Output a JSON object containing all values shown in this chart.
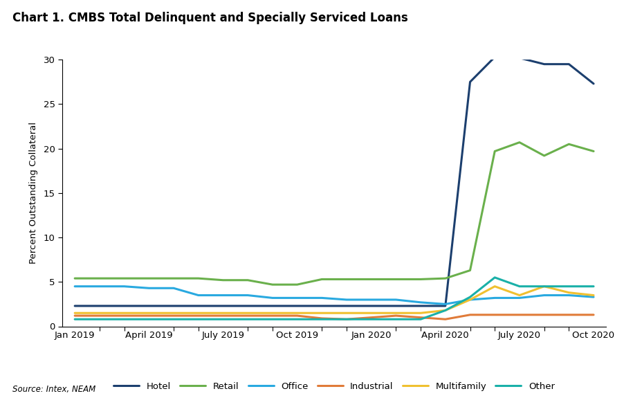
{
  "title": "Chart 1. CMBS Total Delinquent and Specially Serviced Loans",
  "ylabel": "Percent Outstanding Collateral",
  "source": "Source: Intex, NEAM",
  "ylim": [
    0,
    30
  ],
  "yticks": [
    0,
    5,
    10,
    15,
    20,
    25,
    30
  ],
  "x_labels": [
    "Jan 2019",
    "April 2019",
    "July 2019",
    "Oct 2019",
    "Jan 2020",
    "April 2020",
    "July 2020",
    "Oct 2020"
  ],
  "x_positions": [
    0,
    3,
    6,
    9,
    12,
    15,
    18,
    21
  ],
  "n_points": 22,
  "series": {
    "Hotel": {
      "color": "#1c3f6e",
      "data_y": [
        2.3,
        2.3,
        2.3,
        2.3,
        2.3,
        2.3,
        2.3,
        2.3,
        2.3,
        2.3,
        2.3,
        2.3,
        2.3,
        2.3,
        2.3,
        2.3,
        27.5,
        30.3,
        30.2,
        29.5,
        29.5,
        27.3
      ]
    },
    "Retail": {
      "color": "#6ab04c",
      "data_y": [
        5.4,
        5.4,
        5.4,
        5.4,
        5.4,
        5.4,
        5.2,
        5.2,
        4.7,
        4.7,
        5.3,
        5.3,
        5.3,
        5.3,
        5.3,
        5.4,
        6.3,
        19.7,
        20.7,
        19.2,
        20.5,
        19.7
      ]
    },
    "Office": {
      "color": "#29a9e0",
      "data_y": [
        4.5,
        4.5,
        4.5,
        4.3,
        4.3,
        3.5,
        3.5,
        3.5,
        3.2,
        3.2,
        3.2,
        3.0,
        3.0,
        3.0,
        2.7,
        2.5,
        3.0,
        3.2,
        3.2,
        3.5,
        3.5,
        3.3
      ]
    },
    "Industrial": {
      "color": "#e07b39",
      "data_y": [
        1.2,
        1.2,
        1.2,
        1.2,
        1.2,
        1.2,
        1.2,
        1.2,
        1.2,
        1.2,
        0.9,
        0.8,
        1.0,
        1.2,
        1.0,
        0.8,
        1.3,
        1.3,
        1.3,
        1.3,
        1.3,
        1.3
      ]
    },
    "Multifamily": {
      "color": "#f0c030",
      "data_y": [
        1.5,
        1.5,
        1.5,
        1.5,
        1.5,
        1.5,
        1.5,
        1.5,
        1.5,
        1.5,
        1.5,
        1.5,
        1.5,
        1.5,
        1.5,
        1.8,
        3.0,
        4.5,
        3.5,
        4.5,
        3.8,
        3.5
      ]
    },
    "Other": {
      "color": "#1ab0a8",
      "data_y": [
        0.8,
        0.8,
        0.8,
        0.8,
        0.8,
        0.8,
        0.8,
        0.8,
        0.8,
        0.8,
        0.8,
        0.8,
        0.8,
        0.8,
        0.8,
        1.8,
        3.3,
        5.5,
        4.5,
        4.5,
        4.5,
        4.5
      ]
    }
  },
  "legend_order": [
    "Hotel",
    "Retail",
    "Office",
    "Industrial",
    "Multifamily",
    "Other"
  ],
  "background_color": "#ffffff",
  "title_fontsize": 12,
  "label_fontsize": 9.5,
  "tick_fontsize": 9.5,
  "legend_fontsize": 9.5
}
